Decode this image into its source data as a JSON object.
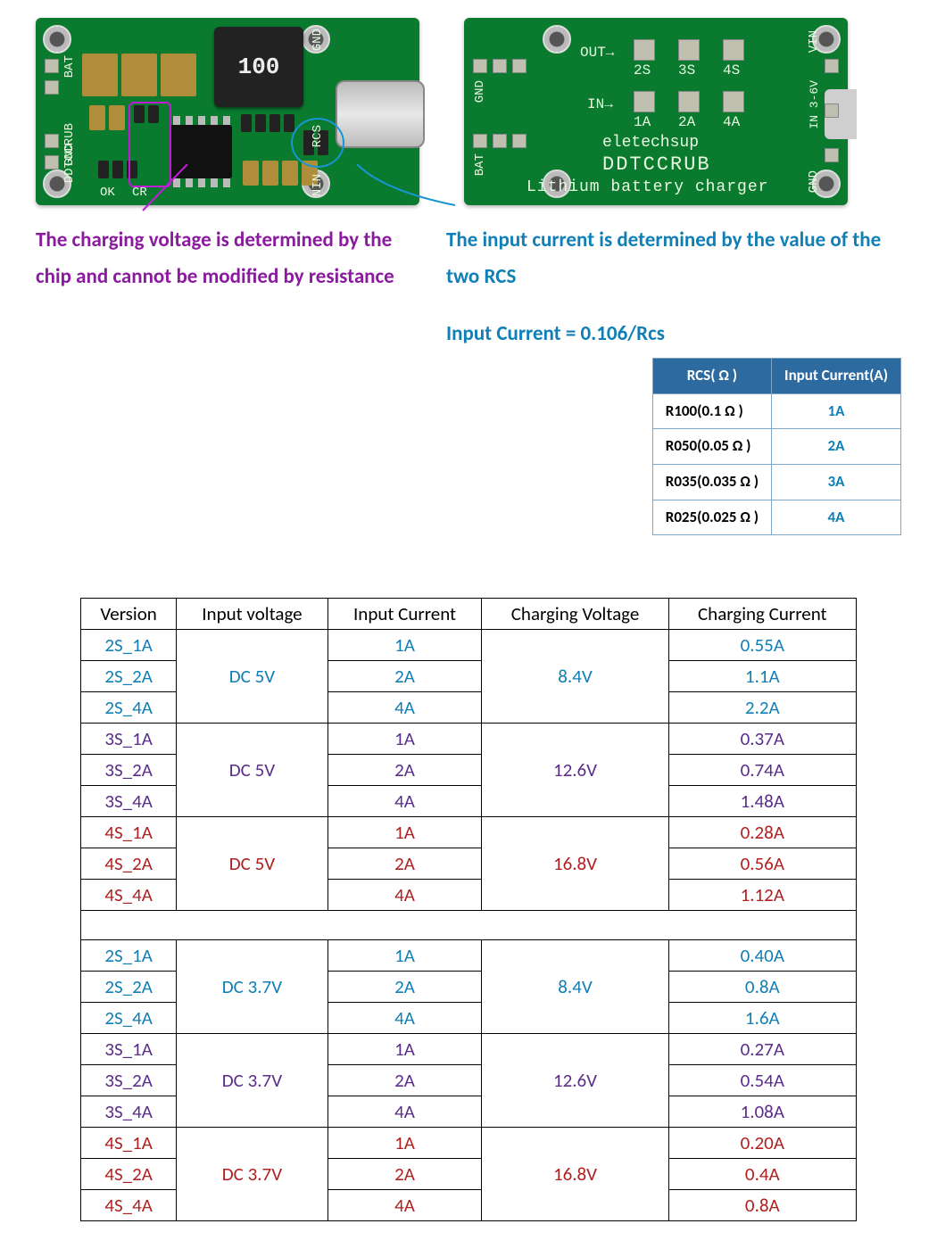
{
  "pcb_front": {
    "bg_color": "#0a7a2f",
    "labels": {
      "bat": "BAT",
      "gnd_l": "GND",
      "ddtccrub": "DDTCCRUB",
      "ok": "OK",
      "cr": "CR",
      "inductor": "100",
      "gnd_r": "GND",
      "rcs": "RCS",
      "nin": "NIN"
    }
  },
  "pcb_back": {
    "labels": {
      "gnd_l": "GND",
      "bat": "BAT",
      "out": "OUT→",
      "out_opts": [
        "2S",
        "3S",
        "4S"
      ],
      "in": "IN→",
      "in_opts": [
        "1A",
        "2A",
        "4A"
      ],
      "brand": "eletechsup",
      "model": "DDTCCRUB",
      "desc": "Lithium battery charger",
      "vin": "VIN",
      "in36v": "IN 3-6V",
      "gnd_r": "GND"
    }
  },
  "annot_purple": "The charging voltage is determined by the chip and cannot be modified by resistance",
  "annot_blue_line1": "The input current is determined by the value of the two RCS",
  "annot_blue_line2": "Input Current = 0.106/Rcs",
  "rcs_table": {
    "headers": [
      "RCS( Ω )",
      "Input Current(A)"
    ],
    "rows": [
      [
        "R100(0.1 Ω )",
        "1A"
      ],
      [
        "R050(0.05 Ω )",
        "2A"
      ],
      [
        "R035(0.035 Ω )",
        "3A"
      ],
      [
        "R025(0.025 Ω )",
        "4A"
      ]
    ]
  },
  "main_table": {
    "headers": [
      "Version",
      "Input voltage",
      "Input Current",
      "Charging Voltage",
      "Charging Current"
    ],
    "groups": [
      {
        "cls": "grp-2s",
        "input_voltage": "DC 5V",
        "charging_voltage": "8.4V",
        "rows": [
          [
            "2S_1A",
            "1A",
            "0.55A"
          ],
          [
            "2S_2A",
            "2A",
            "1.1A"
          ],
          [
            "2S_4A",
            "4A",
            "2.2A"
          ]
        ]
      },
      {
        "cls": "grp-3s",
        "input_voltage": "DC 5V",
        "charging_voltage": "12.6V",
        "rows": [
          [
            "3S_1A",
            "1A",
            "0.37A"
          ],
          [
            "3S_2A",
            "2A",
            "0.74A"
          ],
          [
            "3S_4A",
            "4A",
            "1.48A"
          ]
        ]
      },
      {
        "cls": "grp-4s",
        "input_voltage": "DC 5V",
        "charging_voltage": "16.8V",
        "rows": [
          [
            "4S_1A",
            "1A",
            "0.28A"
          ],
          [
            "4S_2A",
            "2A",
            "0.56A"
          ],
          [
            "4S_4A",
            "4A",
            "1.12A"
          ]
        ]
      }
    ],
    "groups2": [
      {
        "cls": "grp-2s",
        "input_voltage": "DC 3.7V",
        "charging_voltage": "8.4V",
        "rows": [
          [
            "2S_1A",
            "1A",
            "0.40A"
          ],
          [
            "2S_2A",
            "2A",
            "0.8A"
          ],
          [
            "2S_4A",
            "4A",
            "1.6A"
          ]
        ]
      },
      {
        "cls": "grp-3s",
        "input_voltage": "DC 3.7V",
        "charging_voltage": "12.6V",
        "rows": [
          [
            "3S_1A",
            "1A",
            "0.27A"
          ],
          [
            "3S_2A",
            "2A",
            "0.54A"
          ],
          [
            "3S_4A",
            "4A",
            "1.08A"
          ]
        ]
      },
      {
        "cls": "grp-4s",
        "input_voltage": "DC 3.7V",
        "charging_voltage": "16.8V",
        "rows": [
          [
            "4S_1A",
            "1A",
            "0.20A"
          ],
          [
            "4S_2A",
            "2A",
            "0.4A"
          ],
          [
            "4S_4A",
            "4A",
            "0.8A"
          ]
        ]
      }
    ]
  },
  "colors": {
    "purple": "#8a1a9e",
    "blue": "#0f7fb5",
    "pcb": "#0a7a2f",
    "rcs_header_bg": "#2d6aa0",
    "rcs_border": "#7fa6c5",
    "grp_2s": "#0f7fb5",
    "grp_3s": "#5a2d8a",
    "grp_4s": "#b02020"
  }
}
